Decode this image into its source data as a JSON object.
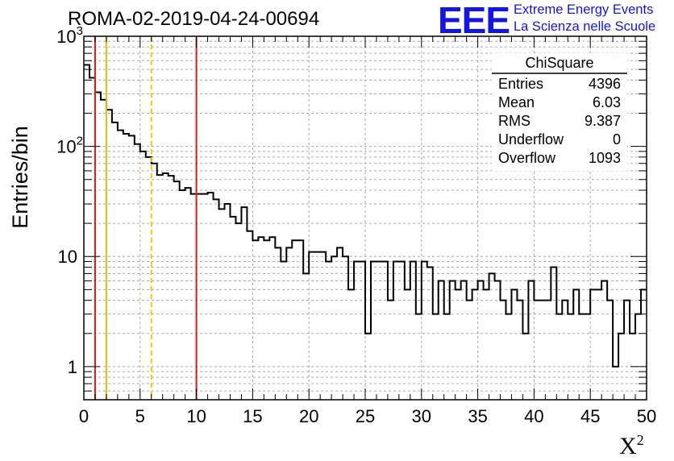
{
  "header": {
    "title": "ROMA-02-2019-04-24-00694",
    "logo_mark": "EEE",
    "logo_line1": "Extreme Energy Events",
    "logo_line2": "La Scienza nelle Scuole"
  },
  "stats_box": {
    "title": "ChiSquare",
    "rows": [
      {
        "label": "Entries",
        "value": "4396"
      },
      {
        "label": "Mean",
        "value": "6.03"
      },
      {
        "label": "RMS",
        "value": "9.387"
      },
      {
        "label": "Underflow",
        "value": "0"
      },
      {
        "label": "Overflow",
        "value": "1093"
      }
    ]
  },
  "colors": {
    "red_line": "#e31a1c",
    "orange_line": "#f5b800",
    "yellow_dashed": "#f5c800",
    "logo_blue": "#1515e0"
  },
  "chart_data": {
    "type": "histogram",
    "xlabel": "X",
    "xlabel_superscript": "2",
    "ylabel": "Entries/bin",
    "xlim": [
      0,
      50
    ],
    "ylim": [
      0.5,
      1000
    ],
    "yscale": "log",
    "grid": true,
    "bin_width": 0.5,
    "x_ticks": [
      "0",
      "5",
      "10",
      "15",
      "20",
      "25",
      "30",
      "35",
      "40",
      "45",
      "50"
    ],
    "y_tick_values": [
      1,
      10,
      100,
      1000
    ],
    "y_tick_labels": [
      {
        "base": "1",
        "exp": ""
      },
      {
        "base": "10",
        "exp": ""
      },
      {
        "base": "10",
        "exp": "2"
      },
      {
        "base": "10",
        "exp": "3"
      }
    ],
    "counts": [
      550,
      420,
      310,
      265,
      215,
      165,
      140,
      130,
      125,
      105,
      90,
      80,
      70,
      55,
      57,
      54,
      48,
      40,
      42,
      37,
      37,
      37,
      38,
      33,
      27,
      30,
      23,
      20,
      28,
      17,
      14,
      15,
      14,
      15,
      12,
      9,
      12,
      14,
      14,
      7,
      11,
      11,
      11,
      9,
      10,
      12,
      10,
      5,
      9,
      9,
      2,
      9,
      9,
      9,
      4,
      9,
      9,
      5,
      9,
      3,
      9,
      8,
      3,
      6,
      3,
      6,
      5,
      6,
      4,
      5,
      6,
      5,
      7,
      6,
      4,
      3,
      5,
      4,
      2,
      6,
      4,
      4,
      4,
      8,
      3,
      4,
      3,
      5,
      3,
      3,
      5,
      5,
      6,
      4,
      1,
      2,
      4,
      2,
      3,
      5
    ],
    "vertical_lines": [
      {
        "x": 1,
        "color": "#e31a1c",
        "style": "solid"
      },
      {
        "x": 2,
        "color": "#f5b800",
        "style": "solid"
      },
      {
        "x": 6,
        "color": "#f5c800",
        "style": "dashed"
      },
      {
        "x": 10,
        "color": "#e31a1c",
        "style": "solid"
      }
    ]
  }
}
